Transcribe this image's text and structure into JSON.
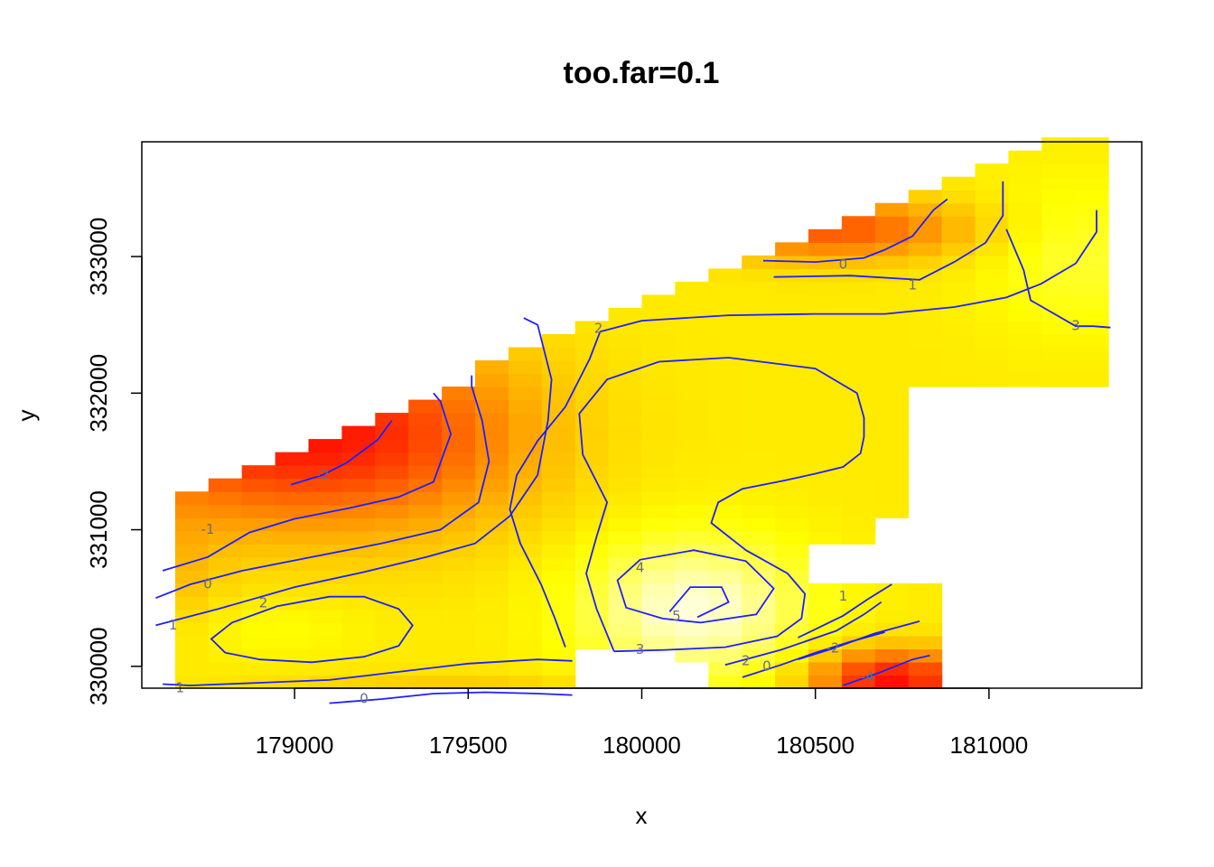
{
  "chart_data": {
    "type": "heatmap",
    "title": "too.far=0.1",
    "xlabel": "x",
    "ylabel": "y",
    "xlim": [
      178560,
      181440
    ],
    "ylim": [
      329840,
      333840
    ],
    "x_ticks": [
      "179000",
      "179500",
      "180000",
      "180500",
      "181000"
    ],
    "y_ticks": [
      "330000",
      "331000",
      "332000",
      "333000"
    ],
    "grid": false,
    "legend": "none",
    "palette": "heat.colors",
    "z_range": [
      -4.5,
      5.6
    ],
    "colors": {
      "contour": "#1e1eff",
      "contour_label": "#6b6b86",
      "axis": "#000000"
    },
    "contours": [
      {
        "level": "5",
        "label_at": [
          180100,
          330365
        ],
        "points": [
          [
            180080,
            330400
          ],
          [
            180140,
            330580
          ],
          [
            180230,
            330580
          ],
          [
            180250,
            330470
          ],
          [
            180160,
            330360
          ]
        ]
      },
      {
        "level": "4",
        "label_at": [
          179995,
          330720
        ],
        "points": [
          [
            180060,
            330350
          ],
          [
            179955,
            330430
          ],
          [
            179930,
            330630
          ],
          [
            179995,
            330780
          ],
          [
            180150,
            330850
          ],
          [
            180300,
            330770
          ],
          [
            180380,
            330570
          ],
          [
            180330,
            330380
          ],
          [
            180170,
            330320
          ],
          [
            180060,
            330350
          ]
        ]
      },
      {
        "level": "3",
        "label_at": [
          179995,
          330120
        ],
        "points": [
          [
            179920,
            330110
          ],
          [
            180070,
            330120
          ],
          [
            180240,
            330140
          ],
          [
            180390,
            330220
          ],
          [
            180460,
            330350
          ],
          [
            180470,
            330530
          ],
          [
            180420,
            330680
          ],
          [
            180300,
            330850
          ],
          [
            180200,
            331050
          ],
          [
            180220,
            331200
          ],
          [
            180290,
            331300
          ],
          [
            180410,
            331360
          ],
          [
            180500,
            331410
          ],
          [
            180580,
            331460
          ],
          [
            180630,
            331560
          ],
          [
            180640,
            331680
          ],
          [
            180640,
            331820
          ],
          [
            180620,
            332000
          ],
          [
            180500,
            332180
          ],
          [
            180250,
            332260
          ],
          [
            180050,
            332230
          ],
          [
            179900,
            332100
          ],
          [
            179820,
            331850
          ],
          [
            179830,
            331550
          ],
          [
            179900,
            331200
          ],
          [
            179870,
            330950
          ],
          [
            179840,
            330680
          ],
          [
            179870,
            330420
          ],
          [
            179920,
            330110
          ]
        ]
      },
      {
        "level": "3",
        "label_at": [
          181250,
          332490
        ],
        "points": [
          [
            181050,
            333200
          ],
          [
            181100,
            332900
          ],
          [
            181120,
            332680
          ],
          [
            181250,
            332490
          ],
          [
            181300,
            332490
          ],
          [
            181350,
            332480
          ]
        ]
      },
      {
        "level": "2",
        "label_at": [
          179875,
          332470
        ],
        "points": [
          [
            179780,
            330140
          ],
          [
            179750,
            330350
          ],
          [
            179710,
            330600
          ],
          [
            179650,
            330900
          ],
          [
            179620,
            331150
          ],
          [
            179640,
            331400
          ],
          [
            179700,
            331650
          ],
          [
            179780,
            331900
          ],
          [
            179850,
            332250
          ],
          [
            179880,
            332450
          ],
          [
            180000,
            332530
          ],
          [
            180250,
            332570
          ],
          [
            180500,
            332580
          ],
          [
            180700,
            332580
          ],
          [
            180900,
            332630
          ],
          [
            181050,
            332700
          ],
          [
            181150,
            332800
          ],
          [
            181250,
            332950
          ],
          [
            181310,
            333180
          ],
          [
            181310,
            333340
          ]
        ]
      },
      {
        "level": "2",
        "label_at": [
          178910,
          330460
        ],
        "points": [
          [
            178800,
            330100
          ],
          [
            178760,
            330200
          ],
          [
            178820,
            330320
          ],
          [
            178950,
            330440
          ],
          [
            179100,
            330510
          ],
          [
            179200,
            330510
          ],
          [
            179300,
            330420
          ],
          [
            179340,
            330300
          ],
          [
            179300,
            330150
          ],
          [
            179200,
            330070
          ],
          [
            179050,
            330030
          ],
          [
            178900,
            330050
          ],
          [
            178800,
            330100
          ]
        ]
      },
      {
        "level": "2",
        "label_at": [
          180300,
          330040
        ],
        "points": [
          [
            180240,
            330010
          ],
          [
            180400,
            330120
          ],
          [
            180560,
            330260
          ],
          [
            180640,
            330380
          ],
          [
            180690,
            330470
          ]
        ]
      },
      {
        "level": "1",
        "label_at": [
          180780,
          332790
        ],
        "points": [
          [
            180380,
            332850
          ],
          [
            180600,
            332860
          ],
          [
            180800,
            332830
          ],
          [
            180900,
            332960
          ],
          [
            180990,
            333100
          ],
          [
            181040,
            333300
          ],
          [
            181040,
            333550
          ]
        ]
      },
      {
        "level": "1",
        "label_at": [
          178650,
          330300
        ],
        "points": [
          [
            178600,
            330300
          ],
          [
            178780,
            330420
          ],
          [
            179000,
            330580
          ],
          [
            179200,
            330690
          ],
          [
            179380,
            330800
          ],
          [
            179520,
            330900
          ],
          [
            179620,
            331100
          ],
          [
            179700,
            331400
          ],
          [
            179730,
            331800
          ],
          [
            179740,
            332100
          ],
          [
            179700,
            332500
          ],
          [
            179660,
            332550
          ]
        ]
      },
      {
        "level": "1",
        "label_at": [
          178670,
          329840
        ],
        "points": [
          [
            178620,
            329870
          ],
          [
            178700,
            329860
          ],
          [
            178900,
            329880
          ],
          [
            179100,
            329900
          ],
          [
            179300,
            329960
          ],
          [
            179500,
            330020
          ],
          [
            179700,
            330050
          ],
          [
            179800,
            330040
          ]
        ]
      },
      {
        "level": "1",
        "label_at": [
          180580,
          330510
        ],
        "points": [
          [
            180450,
            330210
          ],
          [
            180580,
            330370
          ],
          [
            180650,
            330490
          ],
          [
            180720,
            330600
          ]
        ]
      },
      {
        "level": "0",
        "label_at": [
          180580,
          332940
        ],
        "points": [
          [
            180350,
            332970
          ],
          [
            180500,
            332960
          ],
          [
            180640,
            332990
          ],
          [
            180700,
            333050
          ],
          [
            180780,
            333150
          ],
          [
            180840,
            333340
          ],
          [
            180880,
            333420
          ]
        ]
      },
      {
        "level": "0",
        "label_at": [
          178750,
          330600
        ],
        "points": [
          [
            178600,
            330500
          ],
          [
            178700,
            330600
          ],
          [
            178850,
            330700
          ],
          [
            179050,
            330800
          ],
          [
            179250,
            330900
          ],
          [
            179420,
            331000
          ],
          [
            179530,
            331200
          ],
          [
            179560,
            331500
          ],
          [
            179540,
            331800
          ],
          [
            179510,
            332050
          ],
          [
            179510,
            332130
          ]
        ]
      },
      {
        "level": "0",
        "label_at": [
          179200,
          329760
        ],
        "points": [
          [
            179100,
            329730
          ],
          [
            179250,
            329760
          ],
          [
            179400,
            329800
          ],
          [
            179550,
            329810
          ],
          [
            179700,
            329800
          ],
          [
            179800,
            329790
          ]
        ]
      },
      {
        "level": "0",
        "label_at": [
          180360,
          330000
        ],
        "points": [
          [
            180290,
            329920
          ],
          [
            180400,
            330010
          ],
          [
            180500,
            330100
          ],
          [
            180600,
            330180
          ],
          [
            180700,
            330250
          ]
        ]
      },
      {
        "level": "-1",
        "label_at": [
          178750,
          331000
        ],
        "points": [
          [
            178620,
            330700
          ],
          [
            178750,
            330800
          ],
          [
            178870,
            330980
          ],
          [
            179000,
            331080
          ],
          [
            179160,
            331160
          ],
          [
            179300,
            331240
          ],
          [
            179400,
            331350
          ],
          [
            179450,
            331700
          ],
          [
            179420,
            331940
          ],
          [
            179400,
            332000
          ]
        ]
      },
      {
        "level": "-2",
        "label_at": [
          179080,
          331400
        ],
        "points": [
          [
            178990,
            331330
          ],
          [
            179080,
            331400
          ],
          [
            179150,
            331490
          ],
          [
            179240,
            331660
          ],
          [
            179280,
            331800
          ]
        ]
      },
      {
        "level": "-2",
        "label_at": [
          180550,
          330130
        ],
        "points": [
          [
            180450,
            330050
          ],
          [
            180550,
            330130
          ],
          [
            180670,
            330240
          ],
          [
            180800,
            330330
          ]
        ]
      },
      {
        "level": "-4",
        "label_at": [
          180650,
          329920
        ],
        "points": [
          [
            180580,
            329860
          ],
          [
            180680,
            329950
          ],
          [
            180780,
            330050
          ],
          [
            180830,
            330080
          ]
        ]
      }
    ]
  }
}
